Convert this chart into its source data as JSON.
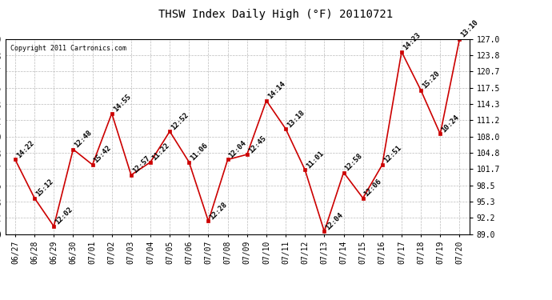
{
  "title": "THSW Index Daily High (°F) 20110721",
  "copyright": "Copyright 2011 Cartronics.com",
  "dates": [
    "06/27",
    "06/28",
    "06/29",
    "06/30",
    "07/01",
    "07/02",
    "07/03",
    "07/04",
    "07/05",
    "07/06",
    "07/07",
    "07/08",
    "07/09",
    "07/10",
    "07/11",
    "07/12",
    "07/13",
    "07/14",
    "07/15",
    "07/16",
    "07/17",
    "07/18",
    "07/19",
    "07/20"
  ],
  "values": [
    103.5,
    96.0,
    90.5,
    105.5,
    102.5,
    112.5,
    100.5,
    103.0,
    109.0,
    103.0,
    91.5,
    103.5,
    104.5,
    115.0,
    109.5,
    101.5,
    89.5,
    101.0,
    96.0,
    102.5,
    124.5,
    117.0,
    108.5,
    127.0
  ],
  "labels": [
    "14:22",
    "15:12",
    "12:02",
    "12:48",
    "15:42",
    "14:55",
    "12:57",
    "11:22",
    "12:52",
    "11:06",
    "12:28",
    "12:04",
    "12:45",
    "14:14",
    "13:18",
    "11:01",
    "12:04",
    "12:58",
    "12:06",
    "12:51",
    "14:23",
    "15:20",
    "10:24",
    "13:10"
  ],
  "ylim": [
    89.0,
    127.0
  ],
  "yticks": [
    89.0,
    92.2,
    95.3,
    98.5,
    101.7,
    104.8,
    108.0,
    111.2,
    114.3,
    117.5,
    120.7,
    123.8,
    127.0
  ],
  "line_color": "#cc0000",
  "marker_color": "#cc0000",
  "background_color": "#ffffff",
  "grid_color": "#bbbbbb",
  "title_fontsize": 10,
  "label_fontsize": 6.5,
  "tick_fontsize": 7
}
